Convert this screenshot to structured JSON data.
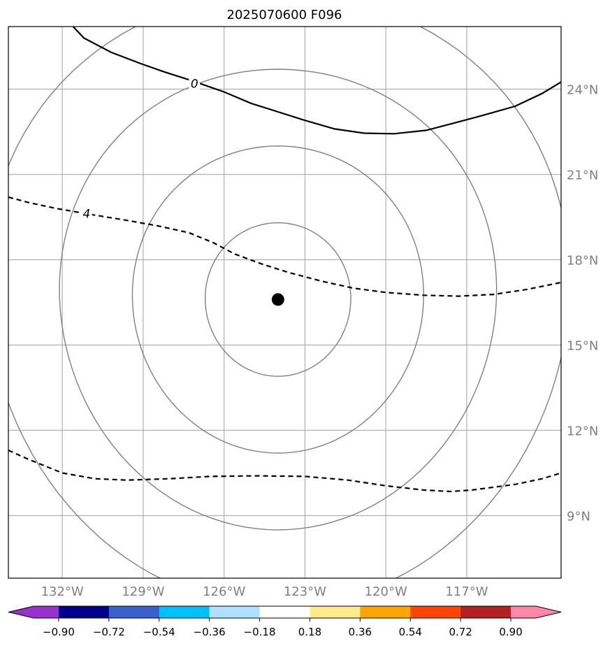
{
  "title": "2025070600 F096",
  "map": {
    "lon_range": [
      -134,
      -113.5
    ],
    "lat_range": [
      6.8,
      26.2
    ],
    "meridians": [
      -132,
      -129,
      -126,
      -123,
      -120,
      -117
    ],
    "parallels": [
      9,
      12,
      15,
      18,
      21,
      24
    ],
    "lon_labels": [
      "132°W",
      "129°W",
      "126°W",
      "123°W",
      "120°W",
      "117°W"
    ],
    "lat_labels": [
      "9°N",
      "12°N",
      "15°N",
      "18°N",
      "21°N",
      "24°N"
    ],
    "storm_center": {
      "lon": -124.0,
      "lat": 16.6
    },
    "range_ring_radii_deg": [
      2.7,
      5.4,
      8.1,
      10.8
    ],
    "colors": {
      "grid": "#b0b0b0",
      "ring": "#808080",
      "contour": "#000000",
      "tick_label": "#808080"
    }
  },
  "contours": [
    {
      "level_label": "0",
      "style": "solid",
      "points": [
        [
          -131.6,
          26.2
        ],
        [
          -131.2,
          25.8
        ],
        [
          -130.2,
          25.3
        ],
        [
          -129.1,
          24.9
        ],
        [
          -128.2,
          24.6
        ],
        [
          -127.2,
          24.3
        ],
        [
          -126.0,
          23.9
        ],
        [
          -125.0,
          23.5
        ],
        [
          -124.0,
          23.2
        ],
        [
          -123.0,
          22.9
        ],
        [
          -121.9,
          22.6
        ],
        [
          -120.8,
          22.45
        ],
        [
          -119.7,
          22.43
        ],
        [
          -118.5,
          22.55
        ],
        [
          -117.5,
          22.8
        ],
        [
          -116.5,
          23.05
        ],
        [
          -115.2,
          23.4
        ],
        [
          -114.2,
          23.85
        ],
        [
          -113.5,
          24.25
        ]
      ],
      "label_at": {
        "lon": -127.1,
        "lat": 24.2
      }
    },
    {
      "level_label": "4",
      "style": "dashed",
      "points": [
        [
          -134.0,
          20.2
        ],
        [
          -133.2,
          20.0
        ],
        [
          -132.2,
          19.8
        ],
        [
          -131.0,
          19.6
        ],
        [
          -129.7,
          19.4
        ],
        [
          -128.5,
          19.2
        ],
        [
          -127.3,
          18.95
        ],
        [
          -126.4,
          18.6
        ],
        [
          -125.6,
          18.2
        ],
        [
          -124.6,
          17.85
        ],
        [
          -123.6,
          17.55
        ],
        [
          -122.4,
          17.25
        ],
        [
          -121.2,
          17.0
        ],
        [
          -120.0,
          16.85
        ],
        [
          -118.6,
          16.75
        ],
        [
          -117.3,
          16.72
        ],
        [
          -116.0,
          16.78
        ],
        [
          -114.8,
          16.95
        ],
        [
          -113.5,
          17.2
        ]
      ],
      "label_at": {
        "lon": -131.1,
        "lat": 19.62
      }
    },
    {
      "level_label": "",
      "style": "dashed",
      "points": [
        [
          -134.0,
          11.3
        ],
        [
          -133.3,
          11.0
        ],
        [
          -132.0,
          10.5
        ],
        [
          -130.8,
          10.3
        ],
        [
          -129.6,
          10.25
        ],
        [
          -128.0,
          10.3
        ],
        [
          -126.5,
          10.38
        ],
        [
          -124.8,
          10.4
        ],
        [
          -123.0,
          10.38
        ],
        [
          -121.4,
          10.25
        ],
        [
          -120.0,
          10.05
        ],
        [
          -118.6,
          9.9
        ],
        [
          -117.6,
          9.85
        ],
        [
          -116.8,
          9.9
        ],
        [
          -115.2,
          10.1
        ],
        [
          -114.2,
          10.3
        ],
        [
          -113.5,
          10.5
        ]
      ],
      "label_at": null
    }
  ],
  "colorbar": {
    "labels": [
      "−0.90",
      "−0.72",
      "−0.54",
      "−0.36",
      "−0.18",
      "0.18",
      "0.36",
      "0.54",
      "0.72",
      "0.90"
    ],
    "under_color": "#9932cc",
    "over_color": "#ff88aa",
    "colors": [
      "#00008b",
      "#3a5fcd",
      "#00bfff",
      "#b0e0ff",
      "#ffffff",
      "#ffeb8b",
      "#ffa500",
      "#ff4500",
      "#b22222"
    ]
  }
}
